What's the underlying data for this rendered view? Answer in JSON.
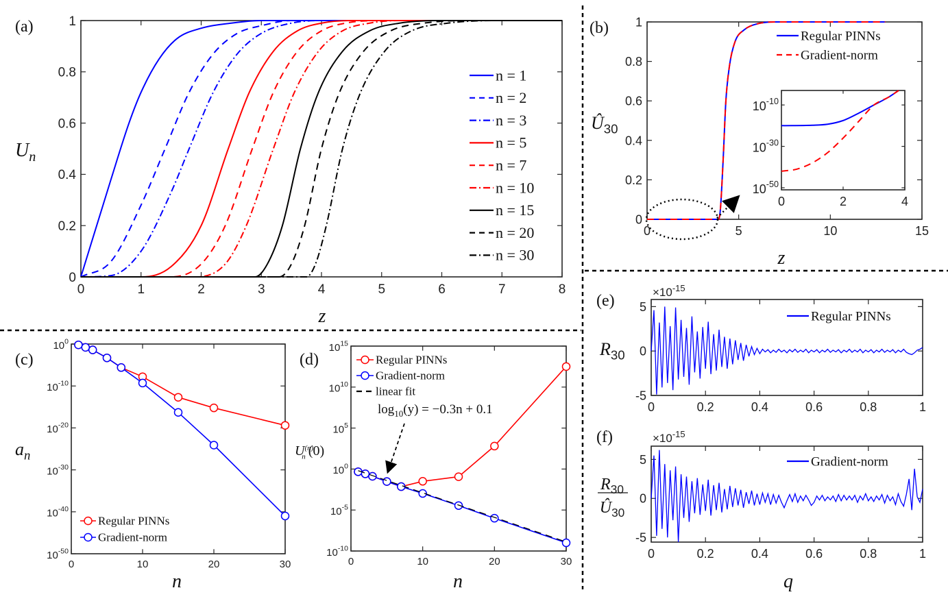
{
  "chart_data": [
    {
      "panel_label": "(a)",
      "type": "line",
      "xlabel": "z",
      "ylabel": {
        "main": "U",
        "sub": "n"
      },
      "xlim": [
        0,
        8
      ],
      "ylim": [
        0,
        1
      ],
      "ylog": false,
      "grid": false,
      "legend_position": "right",
      "xticks": [
        0,
        1,
        2,
        3,
        4,
        5,
        6,
        7,
        8
      ],
      "xtick_labels": [
        "0",
        "1",
        "2",
        "3",
        "4",
        "5",
        "6",
        "7",
        "8"
      ],
      "yticks": [
        0,
        0.2,
        0.4,
        0.6,
        0.8,
        1
      ],
      "ytick_labels": [
        "0",
        "0.2",
        "0.4",
        "0.6",
        "0.8",
        "1"
      ],
      "series": [
        {
          "name": "n = 1",
          "color": "#0000ff",
          "style": "solid",
          "x": [
            0,
            0.5,
            0.8,
            1,
            1.3,
            1.6,
            2,
            2.5,
            3,
            8
          ],
          "y": [
            0,
            0.38,
            0.6,
            0.72,
            0.85,
            0.93,
            0.97,
            0.99,
            1,
            1
          ]
        },
        {
          "name": "n = 2",
          "color": "#0000ff",
          "style": "dashed",
          "x": [
            0,
            0.5,
            1,
            1.4,
            1.8,
            2.2,
            2.6,
            3,
            3.5,
            8
          ],
          "y": [
            0,
            0.06,
            0.28,
            0.5,
            0.72,
            0.87,
            0.95,
            0.98,
            1,
            1
          ]
        },
        {
          "name": "n = 3",
          "color": "#0000ff",
          "style": "dashdot",
          "x": [
            0,
            0.5,
            1,
            1.5,
            1.8,
            2.2,
            2.6,
            3,
            3.5,
            4,
            8
          ],
          "y": [
            0,
            0.005,
            0.1,
            0.33,
            0.5,
            0.72,
            0.87,
            0.95,
            0.99,
            1,
            1
          ]
        },
        {
          "name": "n = 5",
          "color": "#ff0000",
          "style": "solid",
          "x": [
            0,
            1,
            1.5,
            2,
            2.45,
            2.8,
            3.2,
            3.6,
            4,
            4.5,
            8
          ],
          "y": [
            0,
            0,
            0.04,
            0.2,
            0.5,
            0.72,
            0.88,
            0.96,
            0.99,
            1,
            1
          ]
        },
        {
          "name": "n = 7",
          "color": "#ff0000",
          "style": "dashed",
          "x": [
            0,
            1.5,
            2,
            2.4,
            2.85,
            3.2,
            3.6,
            4,
            4.4,
            5,
            8
          ],
          "y": [
            0,
            0,
            0.05,
            0.2,
            0.5,
            0.72,
            0.88,
            0.96,
            0.99,
            1,
            1
          ]
        },
        {
          "name": "n = 10",
          "color": "#ff0000",
          "style": "dashdot",
          "x": [
            0,
            1.9,
            2.4,
            2.75,
            3.2,
            3.55,
            3.95,
            4.35,
            4.8,
            5.3,
            8
          ],
          "y": [
            0,
            0,
            0.05,
            0.2,
            0.5,
            0.72,
            0.88,
            0.96,
            0.99,
            1,
            1
          ]
        },
        {
          "name": "n = 15",
          "color": "#000000",
          "style": "solid",
          "x": [
            0,
            2.9,
            3.1,
            3.35,
            3.65,
            3.95,
            4.35,
            4.8,
            5.3,
            6,
            8
          ],
          "y": [
            0,
            0,
            0.05,
            0.2,
            0.5,
            0.72,
            0.88,
            0.96,
            0.99,
            1,
            1
          ]
        },
        {
          "name": "n = 20",
          "color": "#000000",
          "style": "dashed",
          "x": [
            0,
            3.3,
            3.5,
            3.72,
            4.0,
            4.3,
            4.7,
            5.15,
            5.7,
            6.5,
            8
          ],
          "y": [
            0,
            0,
            0.05,
            0.2,
            0.5,
            0.72,
            0.88,
            0.96,
            0.99,
            1,
            1
          ]
        },
        {
          "name": "n = 30",
          "color": "#000000",
          "style": "dashdot",
          "x": [
            0,
            3.75,
            3.9,
            4.08,
            4.35,
            4.65,
            5.05,
            5.5,
            6.1,
            7,
            8
          ],
          "y": [
            0,
            0,
            0.05,
            0.2,
            0.5,
            0.72,
            0.88,
            0.96,
            0.99,
            1,
            1
          ]
        }
      ]
    },
    {
      "panel_label": "(b)",
      "type": "line",
      "xlabel": "z",
      "ylabel": {
        "main": "Û",
        "sub": "30"
      },
      "xlim": [
        0,
        15
      ],
      "ylim": [
        0,
        1
      ],
      "ylog": false,
      "grid": false,
      "legend_position": "top-right",
      "xticks": [
        0,
        5,
        10,
        15
      ],
      "xtick_labels": [
        "0",
        "5",
        "10",
        "15"
      ],
      "yticks": [
        0,
        0.2,
        0.4,
        0.6,
        0.8,
        1
      ],
      "ytick_labels": [
        "0",
        "0.2",
        "0.4",
        "0.6",
        "0.8",
        "1"
      ],
      "series": [
        {
          "name": "Regular PINNs",
          "color": "#0000ff",
          "style": "solid",
          "x": [
            0,
            3.9,
            4.0,
            4.15,
            4.3,
            4.5,
            4.8,
            5.3,
            6,
            7,
            13
          ],
          "y": [
            0,
            0,
            0.05,
            0.3,
            0.6,
            0.78,
            0.9,
            0.96,
            0.99,
            1,
            1
          ]
        },
        {
          "name": "Gradient-norm",
          "color": "#ff0000",
          "style": "dashed",
          "x": [
            0,
            3.9,
            4.0,
            4.15,
            4.3,
            4.5,
            4.8,
            5.3,
            6,
            7,
            13
          ],
          "y": [
            0,
            0,
            0.05,
            0.3,
            0.6,
            0.78,
            0.9,
            0.96,
            0.99,
            1,
            1
          ]
        }
      ],
      "inset": {
        "type": "line",
        "xlim": [
          0,
          4
        ],
        "ylim": [
          1e-51,
          0.001
        ],
        "ylog": true,
        "xticks": [
          0,
          2,
          4
        ],
        "xtick_labels": [
          "0",
          "2",
          "4"
        ],
        "yticks": [
          1e-50,
          1e-30,
          1e-10
        ],
        "ytick_labels": [
          {
            "base": "10",
            "exp": "-50"
          },
          {
            "base": "10",
            "exp": "-30"
          },
          {
            "base": "10",
            "exp": "-10"
          }
        ],
        "series": [
          {
            "name": "Regular PINNs",
            "color": "#0000ff",
            "style": "solid",
            "x": [
              0,
              1,
              1.5,
              2,
              2.5,
              3,
              3.5,
              3.8
            ],
            "y": [
              1e-20,
              1.6e-20,
              5e-20,
              3e-18,
              1e-14,
              1e-10,
              1e-06,
              0.001
            ]
          },
          {
            "name": "Gradient-norm",
            "color": "#ff0000",
            "style": "dashed",
            "x": [
              0,
              0.5,
              1,
              1.5,
              2,
              2.5,
              2.8,
              3,
              3.5,
              3.8
            ],
            "y": [
              1e-42,
              1e-41,
              1e-38,
              1e-33,
              1e-26,
              1e-18,
              1e-13,
              1e-10,
              1e-06,
              0.001
            ]
          }
        ]
      }
    },
    {
      "panel_label": "(c)",
      "type": "line",
      "xlabel": "n",
      "ylabel": {
        "main": "a",
        "sub": "n"
      },
      "xlim": [
        0,
        30
      ],
      "ylim": [
        1e-50,
        1
      ],
      "ylog": true,
      "grid": false,
      "legend_position": "bottom-left",
      "xticks": [
        0,
        10,
        20,
        30
      ],
      "xtick_labels": [
        "0",
        "10",
        "20",
        "30"
      ],
      "yticks": [
        1e-50,
        1e-40,
        1e-30,
        1e-20,
        1e-10,
        1
      ],
      "ytick_labels": [
        {
          "base": "10",
          "exp": "-50"
        },
        {
          "base": "10",
          "exp": "-40"
        },
        {
          "base": "10",
          "exp": "-30"
        },
        {
          "base": "10",
          "exp": "-20"
        },
        {
          "base": "10",
          "exp": "-10"
        },
        {
          "base": "10",
          "exp": "0"
        }
      ],
      "series": [
        {
          "name": "Regular PINNs",
          "color": "#ff0000",
          "style": "solid",
          "marker": "circle",
          "x": [
            1,
            2,
            3,
            5,
            7,
            10,
            15,
            20,
            30
          ],
          "y": [
            0.63,
            0.16,
            0.04,
            0.0005,
            2.5e-06,
            1.6e-08,
            2e-13,
            6e-16,
            4e-20
          ]
        },
        {
          "name": "Gradient-norm",
          "color": "#0000ff",
          "style": "solid",
          "marker": "circle",
          "x": [
            1,
            2,
            3,
            5,
            7,
            10,
            15,
            20,
            30
          ],
          "y": [
            0.63,
            0.16,
            0.04,
            0.0005,
            2.5e-06,
            5e-10,
            5e-17,
            8e-25,
            1e-41
          ]
        }
      ]
    },
    {
      "panel_label": "(d)",
      "type": "line",
      "xlabel": "n",
      "ylabel": {
        "main": "U",
        "sub": "n",
        "sup": "(n)",
        "post": "(0)"
      },
      "xlim": [
        0,
        30
      ],
      "ylim": [
        1e-10,
        1000000000000000.0
      ],
      "ylog": true,
      "grid": false,
      "legend_position": "top-left",
      "xticks": [
        0,
        10,
        20,
        30
      ],
      "xtick_labels": [
        "0",
        "10",
        "20",
        "30"
      ],
      "yticks": [
        1e-10,
        1e-05,
        1,
        100000.0,
        10000000000.0,
        1000000000000000.0
      ],
      "ytick_labels": [
        {
          "base": "10",
          "exp": "-10"
        },
        {
          "base": "10",
          "exp": "-5"
        },
        {
          "base": "10",
          "exp": "0"
        },
        {
          "base": "10",
          "exp": "5"
        },
        {
          "base": "10",
          "exp": "10"
        },
        {
          "base": "10",
          "exp": "15"
        }
      ],
      "series": [
        {
          "name": "Regular PINNs",
          "color": "#ff0000",
          "style": "solid",
          "marker": "circle",
          "x": [
            1,
            2,
            3,
            5,
            7,
            10,
            15,
            20,
            30
          ],
          "y": [
            0.47,
            0.26,
            0.13,
            0.03,
            0.0072,
            0.032,
            0.115,
            630,
            3200000000000.0
          ]
        },
        {
          "name": "Gradient-norm",
          "color": "#0000ff",
          "style": "solid",
          "marker": "circle",
          "x": [
            1,
            2,
            3,
            5,
            7,
            10,
            15,
            20,
            30
          ],
          "y": [
            0.47,
            0.26,
            0.13,
            0.03,
            0.0072,
            0.00105,
            3.5e-05,
            1e-06,
            1e-09
          ]
        },
        {
          "name": "linear fit",
          "color": "#000000",
          "style": "dashed",
          "x": [
            1,
            30
          ],
          "y": [
            0.631,
            1.26e-09
          ]
        }
      ],
      "annotation": {
        "pre": "log",
        "sub": "10",
        "post": "(y) = −0.3n + 0.1"
      }
    },
    {
      "panel_label": "(e)",
      "type": "line",
      "xlabel": "",
      "ylabel": {
        "main": "R",
        "sub": "30"
      },
      "exponent_label": {
        "pre": "×10",
        "sup": "-15"
      },
      "xlim": [
        0,
        1
      ],
      "ylim": [
        -5,
        5.8
      ],
      "ylog": false,
      "grid": false,
      "legend_position": "top-right",
      "xticks": [
        0,
        0.2,
        0.4,
        0.6,
        0.8,
        1
      ],
      "xtick_labels": [
        "0",
        "0.2",
        "0.4",
        "0.6",
        "0.8",
        "1"
      ],
      "yticks": [
        -5,
        0,
        5
      ],
      "ytick_labels": [
        "-5",
        "0",
        "5"
      ],
      "series": [
        {
          "name": "Regular PINNs",
          "color": "#0000ff",
          "style": "solid",
          "x_range": [
            0,
            1
          ],
          "y": [
            0,
            4.6,
            -4.9,
            3.2,
            -4.1,
            5.0,
            -3.6,
            2.8,
            -4.4,
            4.9,
            -3.2,
            3.5,
            -2.9,
            2.6,
            -3.8,
            3.9,
            -2.4,
            2.2,
            -3.1,
            2.7,
            -2.0,
            3.3,
            -2.6,
            1.9,
            -2.2,
            2.4,
            -1.8,
            1.6,
            -2.0,
            1.4,
            -1.5,
            1.2,
            -1.0,
            0.9,
            -1.1,
            0.7,
            -0.6,
            0.5,
            -0.4,
            0.3,
            -0.3,
            0.2,
            -0.1,
            0.15,
            -0.2,
            0.1,
            -0.15,
            0.2,
            -0.1,
            0.1,
            -0.2,
            0.15,
            -0.1,
            0.2,
            -0.15,
            0.1,
            -0.1,
            0.2,
            -0.2,
            0.1,
            -0.1,
            0.15,
            -0.2,
            0.1,
            -0.1,
            0.2,
            -0.15,
            0.1,
            -0.1,
            0.15,
            -0.2,
            0.1,
            -0.1,
            0.2,
            -0.15,
            0.1,
            -0.1,
            0.2,
            -0.2,
            0.1,
            -0.1,
            0.15,
            -0.2,
            0.1,
            -0.1,
            0.2,
            -0.15,
            0.1,
            -0.1,
            0.15,
            -0.2,
            0.1,
            -0.1,
            0.2,
            -0.15,
            -0.3,
            -0.4,
            -0.2,
            0.1,
            0.2,
            0.4
          ]
        }
      ]
    },
    {
      "panel_label": "(f)",
      "type": "line",
      "xlabel": "q",
      "ylabel": {
        "num": {
          "main": "R",
          "sub": "30"
        },
        "den": {
          "main": "Û",
          "sub": "30"
        }
      },
      "exponent_label": {
        "pre": "×10",
        "sup": "-15"
      },
      "xlim": [
        0,
        1
      ],
      "ylim": [
        -5.6,
        6.7
      ],
      "ylog": false,
      "grid": false,
      "legend_position": "top-right",
      "xticks": [
        0,
        0.2,
        0.4,
        0.6,
        0.8,
        1
      ],
      "xtick_labels": [
        "0",
        "0.2",
        "0.4",
        "0.6",
        "0.8",
        "1"
      ],
      "yticks": [
        -5,
        0,
        5
      ],
      "ytick_labels": [
        "-5",
        "0",
        "5"
      ],
      "series": [
        {
          "name": "Gradient-norm",
          "color": "#0000ff",
          "style": "solid",
          "x_range": [
            0,
            1
          ],
          "y": [
            0,
            5.5,
            -4.8,
            6.2,
            -3.9,
            4.4,
            -5.0,
            3.6,
            -2.8,
            4.1,
            -5.6,
            3.1,
            -2.5,
            2.8,
            -3.0,
            2.2,
            -1.9,
            2.6,
            -2.1,
            1.8,
            -1.6,
            2.4,
            -2.2,
            1.7,
            -1.5,
            2.0,
            -1.8,
            1.2,
            -1.4,
            1.6,
            -1.1,
            1.3,
            -0.9,
            1.1,
            -1.2,
            0.8,
            -0.7,
            1.0,
            -0.9,
            0.6,
            -0.8,
            0.7,
            -0.5,
            0.6,
            -0.8,
            0.5,
            -0.6,
            0.4,
            -0.5,
            -1.2,
            -0.3,
            0.5,
            -0.4,
            0.6,
            -0.5,
            0.3,
            -0.3,
            0.4,
            -0.2,
            -0.9,
            -0.5,
            0.3,
            -0.2,
            0.4,
            -0.3,
            0.2,
            -0.2,
            0.3,
            -0.4,
            0.5,
            -0.3,
            0.4,
            -0.2,
            0.3,
            -0.2,
            0.4,
            -0.5,
            0.3,
            -0.2,
            0.6,
            -0.3,
            0.2,
            -0.4,
            0.3,
            -0.2,
            0.5,
            -0.6,
            0.4,
            -0.3,
            0.2,
            -0.8,
            0.6,
            -0.4,
            -1.0,
            0.5,
            2.5,
            -1.5,
            3.8,
            0.2,
            -0.5,
            1.2
          ]
        }
      ]
    }
  ]
}
